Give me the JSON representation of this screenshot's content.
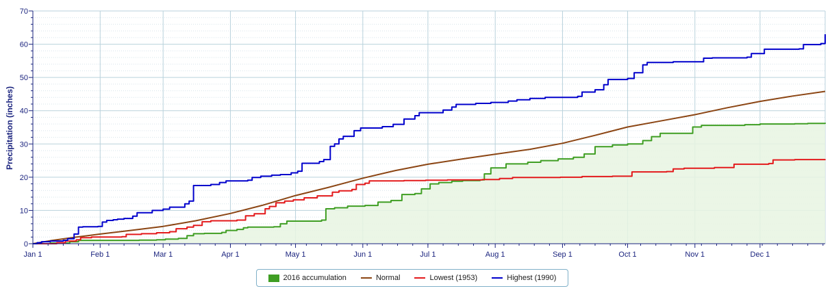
{
  "chart_data": {
    "type": "line",
    "title": "",
    "xlabel": "",
    "ylabel": "Precipitation (inches)",
    "ylim": [
      0,
      70
    ],
    "yticks": [
      0,
      10,
      20,
      30,
      40,
      50,
      60,
      70
    ],
    "xlim": [
      1,
      366
    ],
    "xticks": [
      {
        "label": "Jan 1",
        "day": 1
      },
      {
        "label": "Feb 1",
        "day": 32
      },
      {
        "label": "Mar 1",
        "day": 61
      },
      {
        "label": "Apr 1",
        "day": 92
      },
      {
        "label": "May 1",
        "day": 122
      },
      {
        "label": "Jun 1",
        "day": 153
      },
      {
        "label": "Jul 1",
        "day": 183
      },
      {
        "label": "Aug 1",
        "day": 214
      },
      {
        "label": "Sep 1",
        "day": 245
      },
      {
        "label": "Oct 1",
        "day": 275
      },
      {
        "label": "Nov 1",
        "day": 306
      },
      {
        "label": "Dec 1",
        "day": 336
      }
    ],
    "grid": true,
    "legend_position": "bottom-center",
    "series": [
      {
        "name": "2016 accumulation",
        "kind": "area",
        "color": "#3f9e23",
        "fill": "#e8f4e2",
        "step": true,
        "points": [
          [
            1,
            0
          ],
          [
            9,
            0.2
          ],
          [
            18,
            0.6
          ],
          [
            22,
            1
          ],
          [
            40,
            1
          ],
          [
            50,
            1.1
          ],
          [
            58,
            1.2
          ],
          [
            62,
            1.4
          ],
          [
            68,
            1.6
          ],
          [
            72,
            2.4
          ],
          [
            75,
            3
          ],
          [
            80,
            3.1
          ],
          [
            88,
            3.4
          ],
          [
            90,
            4
          ],
          [
            95,
            4.3
          ],
          [
            98,
            4.8
          ],
          [
            100,
            5
          ],
          [
            112,
            5.1
          ],
          [
            115,
            6
          ],
          [
            118,
            6.8
          ],
          [
            134,
            7.1
          ],
          [
            136,
            10.5
          ],
          [
            140,
            10.8
          ],
          [
            146,
            11.3
          ],
          [
            154,
            11.5
          ],
          [
            160,
            12.5
          ],
          [
            166,
            13
          ],
          [
            171,
            14.8
          ],
          [
            177,
            15.1
          ],
          [
            180,
            16.5
          ],
          [
            184,
            18
          ],
          [
            188,
            18.4
          ],
          [
            194,
            18.8
          ],
          [
            199,
            19
          ],
          [
            207,
            19.2
          ],
          [
            209,
            21
          ],
          [
            212,
            22.8
          ],
          [
            219,
            24
          ],
          [
            229,
            24.5
          ],
          [
            235,
            25
          ],
          [
            243,
            25.5
          ],
          [
            250,
            26
          ],
          [
            255,
            27
          ],
          [
            260,
            29.2
          ],
          [
            268,
            29.7
          ],
          [
            275,
            30
          ],
          [
            282,
            31
          ],
          [
            286,
            32.2
          ],
          [
            290,
            33.2
          ],
          [
            305,
            35.1
          ],
          [
            309,
            35.6
          ],
          [
            329,
            35.8
          ],
          [
            336,
            36
          ],
          [
            352,
            36.1
          ],
          [
            358,
            36.2
          ],
          [
            366,
            36.4
          ]
        ]
      },
      {
        "name": "Normal",
        "kind": "line",
        "color": "#8b4513",
        "step": false,
        "points": [
          [
            1,
            0
          ],
          [
            10,
            1
          ],
          [
            20,
            1.9
          ],
          [
            32,
            2.9
          ],
          [
            46,
            4
          ],
          [
            61,
            5.2
          ],
          [
            76,
            6.9
          ],
          [
            92,
            9.1
          ],
          [
            107,
            11.6
          ],
          [
            122,
            14.5
          ],
          [
            137,
            16.9
          ],
          [
            153,
            19.7
          ],
          [
            168,
            22
          ],
          [
            183,
            23.9
          ],
          [
            199,
            25.5
          ],
          [
            214,
            26.9
          ],
          [
            230,
            28.4
          ],
          [
            245,
            30.2
          ],
          [
            260,
            32.6
          ],
          [
            275,
            35.1
          ],
          [
            290,
            36.9
          ],
          [
            306,
            38.8
          ],
          [
            321,
            40.9
          ],
          [
            336,
            42.8
          ],
          [
            351,
            44.4
          ],
          [
            366,
            45.8
          ]
        ]
      },
      {
        "name": "Lowest (1953)",
        "kind": "line",
        "color": "#e31a1c",
        "step": true,
        "points": [
          [
            1,
            0
          ],
          [
            12,
            0.3
          ],
          [
            16,
            0.8
          ],
          [
            21,
            1.2
          ],
          [
            23,
            1.8
          ],
          [
            28,
            2
          ],
          [
            42,
            2.1
          ],
          [
            44,
            2.8
          ],
          [
            51,
            3
          ],
          [
            58,
            3.3
          ],
          [
            64,
            3.6
          ],
          [
            67,
            4.5
          ],
          [
            72,
            5
          ],
          [
            75,
            5.5
          ],
          [
            79,
            6.6
          ],
          [
            83,
            6.9
          ],
          [
            95,
            7.1
          ],
          [
            99,
            8.4
          ],
          [
            103,
            9
          ],
          [
            108,
            10.5
          ],
          [
            110,
            11.2
          ],
          [
            113,
            12.3
          ],
          [
            117,
            12.8
          ],
          [
            121,
            13.2
          ],
          [
            126,
            13.8
          ],
          [
            132,
            14.4
          ],
          [
            139,
            15.5
          ],
          [
            142,
            15.9
          ],
          [
            148,
            16.3
          ],
          [
            150,
            17.8
          ],
          [
            154,
            18.2
          ],
          [
            156,
            18.9
          ],
          [
            172,
            19
          ],
          [
            182,
            19.1
          ],
          [
            192,
            19.2
          ],
          [
            208,
            19.3
          ],
          [
            216,
            19.6
          ],
          [
            222,
            19.9
          ],
          [
            244,
            20
          ],
          [
            254,
            20.2
          ],
          [
            268,
            20.3
          ],
          [
            277,
            21.6
          ],
          [
            293,
            21.7
          ],
          [
            296,
            22.5
          ],
          [
            301,
            22.7
          ],
          [
            315,
            22.9
          ],
          [
            324,
            23.9
          ],
          [
            340,
            24.1
          ],
          [
            342,
            25.2
          ],
          [
            352,
            25.3
          ],
          [
            366,
            25.4
          ]
        ]
      },
      {
        "name": "Highest (1990)",
        "kind": "line",
        "color": "#0000cc",
        "step": true,
        "points": [
          [
            1,
            0
          ],
          [
            3,
            0.3
          ],
          [
            5,
            0.6
          ],
          [
            9,
            0.8
          ],
          [
            15,
            1
          ],
          [
            17,
            1.5
          ],
          [
            20,
            2.9
          ],
          [
            22,
            5
          ],
          [
            24,
            5.1
          ],
          [
            31,
            5.2
          ],
          [
            33,
            6.5
          ],
          [
            35,
            7
          ],
          [
            38,
            7.2
          ],
          [
            40,
            7.4
          ],
          [
            43,
            7.6
          ],
          [
            47,
            8.3
          ],
          [
            49,
            9.3
          ],
          [
            56,
            10
          ],
          [
            61,
            10.4
          ],
          [
            64,
            11
          ],
          [
            71,
            12
          ],
          [
            73,
            12.8
          ],
          [
            75,
            17.5
          ],
          [
            83,
            17.8
          ],
          [
            87,
            18.4
          ],
          [
            90,
            18.9
          ],
          [
            100,
            19.1
          ],
          [
            102,
            19.9
          ],
          [
            106,
            20.3
          ],
          [
            111,
            20.6
          ],
          [
            115,
            20.8
          ],
          [
            120,
            21.3
          ],
          [
            123,
            21.8
          ],
          [
            125,
            24.2
          ],
          [
            133,
            24.7
          ],
          [
            135,
            25.3
          ],
          [
            138,
            29.3
          ],
          [
            140,
            30
          ],
          [
            142,
            31.5
          ],
          [
            144,
            32.3
          ],
          [
            149,
            34
          ],
          [
            152,
            34.8
          ],
          [
            162,
            35.2
          ],
          [
            167,
            35.9
          ],
          [
            172,
            37.5
          ],
          [
            177,
            38.5
          ],
          [
            179,
            39.4
          ],
          [
            190,
            40.2
          ],
          [
            194,
            41.1
          ],
          [
            196,
            41.9
          ],
          [
            205,
            42.2
          ],
          [
            212,
            42.5
          ],
          [
            220,
            42.9
          ],
          [
            224,
            43.3
          ],
          [
            230,
            43.7
          ],
          [
            237,
            44
          ],
          [
            252,
            44.3
          ],
          [
            254,
            45.6
          ],
          [
            260,
            46.3
          ],
          [
            264,
            47.8
          ],
          [
            266,
            49.4
          ],
          [
            275,
            49.7
          ],
          [
            278,
            51.4
          ],
          [
            282,
            53.8
          ],
          [
            284,
            54.5
          ],
          [
            296,
            54.7
          ],
          [
            310,
            55.8
          ],
          [
            314,
            55.9
          ],
          [
            330,
            56.1
          ],
          [
            332,
            57.2
          ],
          [
            338,
            58.5
          ],
          [
            354,
            58.6
          ],
          [
            356,
            59.9
          ],
          [
            364,
            60.2
          ],
          [
            366,
            63
          ]
        ]
      }
    ]
  }
}
